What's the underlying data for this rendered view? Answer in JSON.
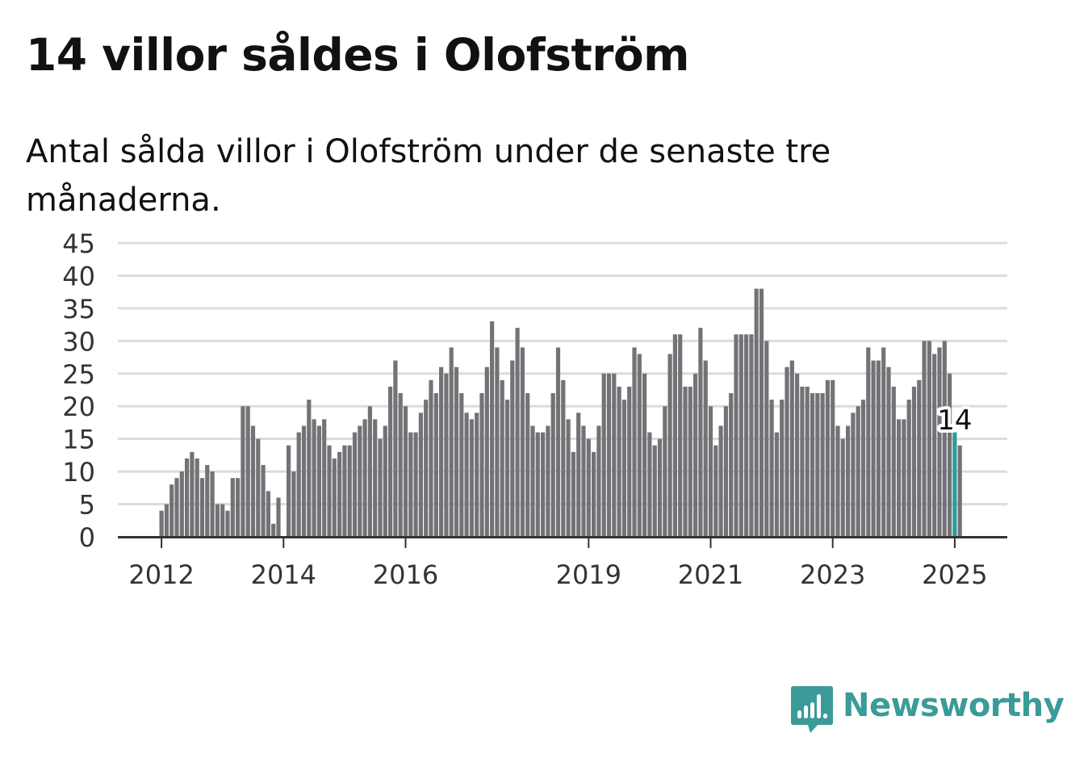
{
  "title": "14 villor såldes i Olofström",
  "subtitle": "Antal sålda villor i Olofström under de senaste tre månaderna.",
  "brand": {
    "name": "Newsworthy",
    "color": "#3a9b98",
    "icon": "bar-chart-speech-bubble-icon"
  },
  "colors": {
    "bar": "#737276",
    "highlight": "#2a9d9a",
    "grid": "#dcdcdc",
    "axis": "#333333",
    "text": "#333333"
  },
  "chart_data": {
    "type": "bar",
    "title": "14 villor såldes i Olofström",
    "xlabel": "",
    "ylabel": "",
    "ylim": [
      0,
      45
    ],
    "yticks": [
      0,
      5,
      10,
      15,
      20,
      25,
      30,
      35,
      40,
      45
    ],
    "grid": true,
    "x_start": "2012-01",
    "x_end": "2025-01",
    "x_ticks": [
      "2012",
      "2014",
      "2016",
      "2019",
      "2021",
      "2023",
      "2025"
    ],
    "highlight": {
      "x": "2025-01",
      "value": 14,
      "label": "14"
    },
    "values": [
      4,
      5,
      8,
      9,
      10,
      12,
      13,
      12,
      9,
      11,
      10,
      5,
      5,
      4,
      9,
      9,
      20,
      20,
      17,
      15,
      11,
      7,
      2,
      6,
      0,
      14,
      10,
      16,
      17,
      21,
      18,
      17,
      18,
      14,
      12,
      13,
      14,
      14,
      16,
      17,
      18,
      20,
      18,
      15,
      17,
      23,
      27,
      22,
      20,
      16,
      16,
      19,
      21,
      24,
      22,
      26,
      25,
      29,
      26,
      22,
      19,
      18,
      19,
      22,
      26,
      33,
      29,
      24,
      21,
      27,
      32,
      29,
      22,
      17,
      16,
      16,
      17,
      22,
      29,
      24,
      18,
      13,
      19,
      17,
      15,
      13,
      17,
      25,
      25,
      25,
      23,
      21,
      23,
      29,
      28,
      25,
      16,
      14,
      15,
      20,
      28,
      31,
      31,
      23,
      23,
      25,
      32,
      27,
      20,
      14,
      17,
      20,
      22,
      31,
      31,
      31,
      31,
      38,
      38,
      30,
      21,
      16,
      21,
      26,
      27,
      25,
      23,
      23,
      22,
      22,
      22,
      24,
      24,
      17,
      15,
      17,
      19,
      20,
      21,
      29,
      27,
      27,
      29,
      26,
      23,
      18,
      18,
      21,
      23,
      24,
      30,
      30,
      28,
      29,
      30,
      25,
      16,
      14
    ]
  }
}
